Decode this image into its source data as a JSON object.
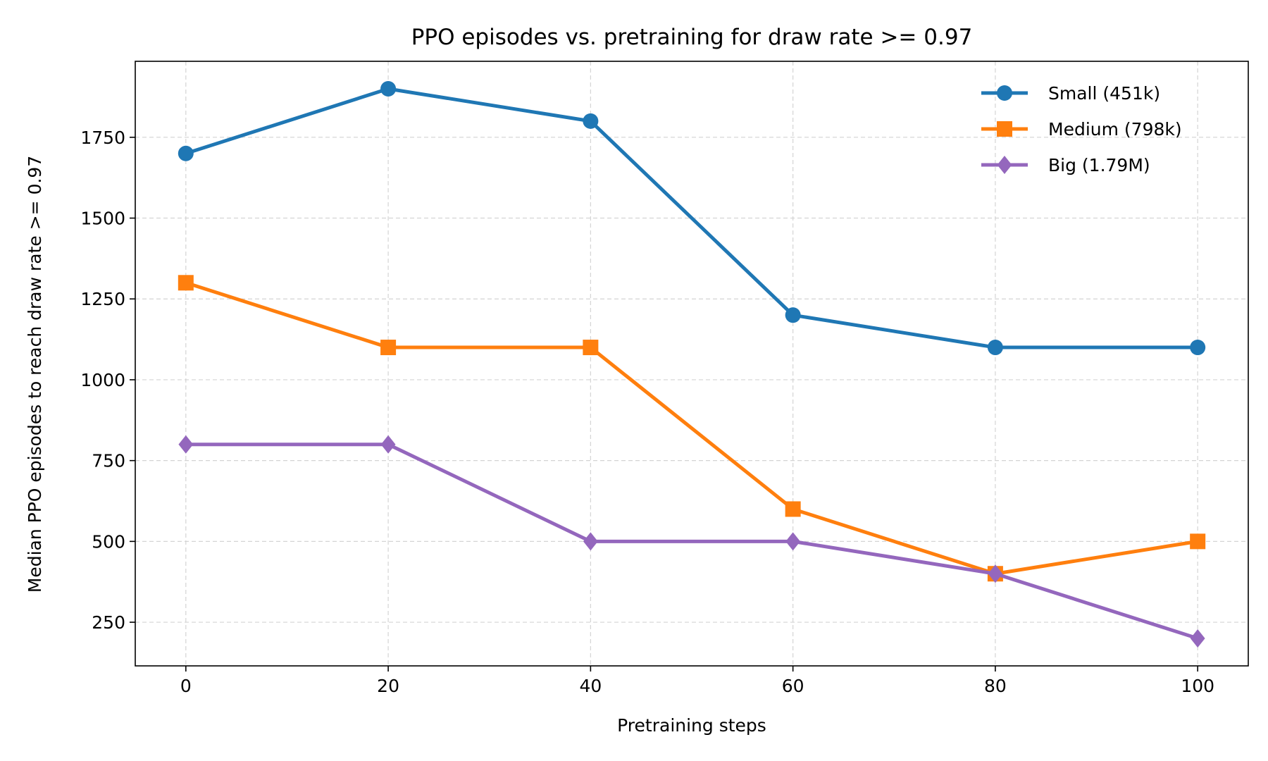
{
  "chart_data": {
    "type": "line",
    "title": "PPO episodes vs. pretraining for draw rate >= 0.97",
    "xlabel": "Pretraining steps",
    "ylabel": "Median PPO episodes to reach draw rate >= 0.97",
    "x": [
      0,
      20,
      40,
      60,
      80,
      100
    ],
    "xlim": [
      -5,
      105
    ],
    "ylim": [
      115,
      1985
    ],
    "xticks": [
      "0",
      "20",
      "40",
      "60",
      "80",
      "100"
    ],
    "xtick_values": [
      0,
      20,
      40,
      60,
      80,
      100
    ],
    "yticks": [
      "250",
      "500",
      "750",
      "1000",
      "1250",
      "1500",
      "1750"
    ],
    "ytick_values": [
      250,
      500,
      750,
      1000,
      1250,
      1500,
      1750
    ],
    "grid": true,
    "legend_position": "top-right",
    "series": [
      {
        "name": "Small (451k)",
        "values": [
          1700,
          1900,
          1800,
          1200,
          1100,
          1100
        ],
        "color": "#1f77b4",
        "marker": "circle"
      },
      {
        "name": "Medium (798k)",
        "values": [
          1300,
          1100,
          1100,
          600,
          400,
          500
        ],
        "color": "#ff7f0e",
        "marker": "square"
      },
      {
        "name": "Big (1.79M)",
        "values": [
          800,
          800,
          500,
          500,
          400,
          200
        ],
        "color": "#9467bd",
        "marker": "diamond"
      }
    ]
  }
}
